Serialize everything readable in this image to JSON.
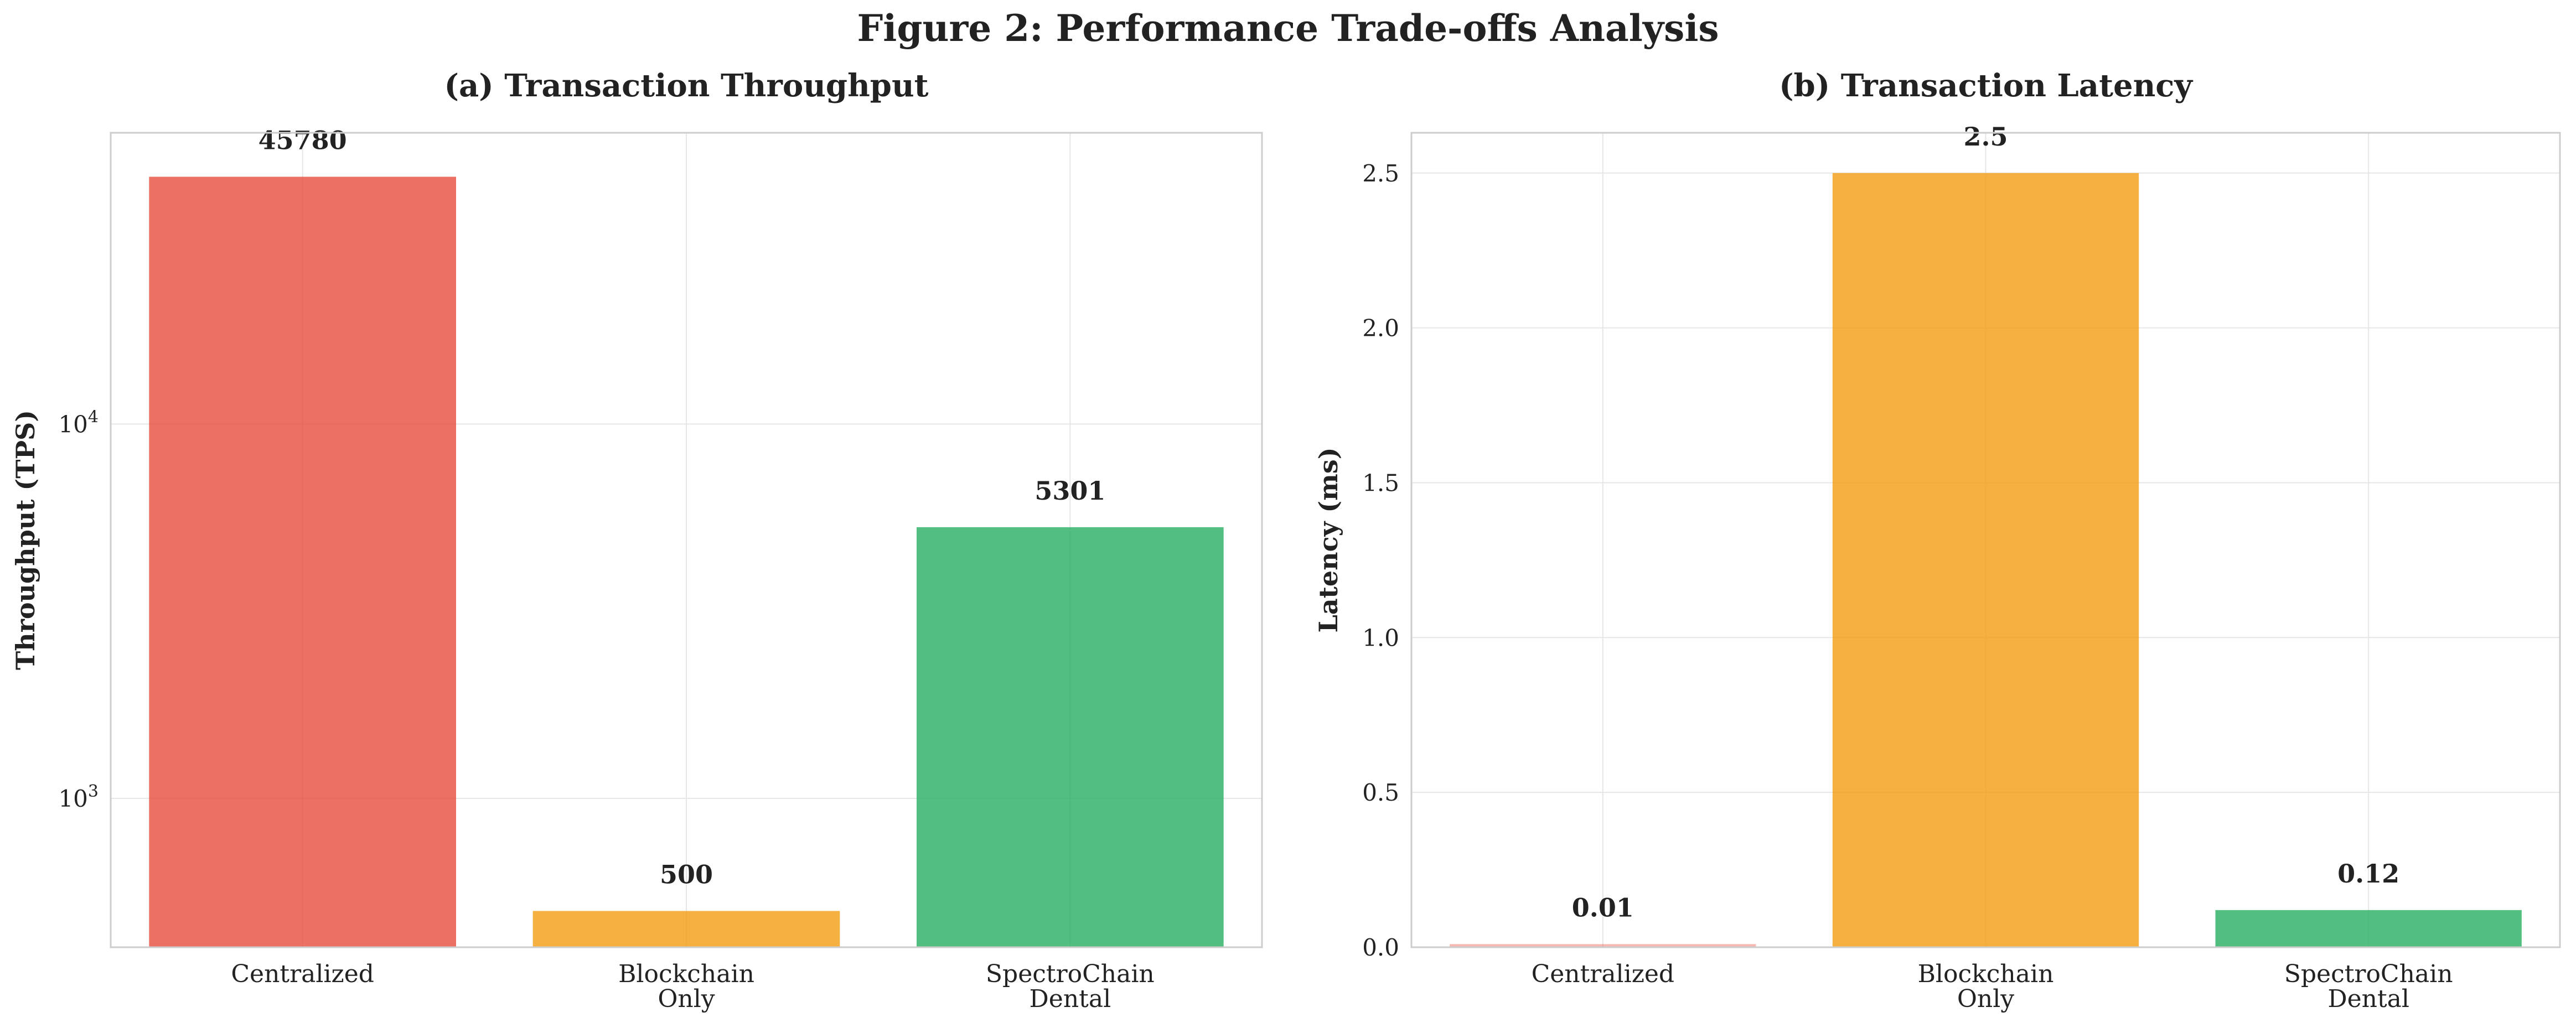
{
  "figure": {
    "title": "Figure 2: Performance Trade-offs Analysis"
  },
  "colors": {
    "centralized": "#e74c3c",
    "blockchain_only": "#f39c12",
    "spectrochain_dental": "#27ae60",
    "grid": "#e6e6e6",
    "axis": "#cccccc",
    "text": "#222222"
  },
  "chart_data": [
    {
      "type": "bar",
      "title": "(a) Transaction Throughput",
      "xlabel": "",
      "ylabel": "Throughput (TPS)",
      "yscale": "log",
      "ylim": [
        400,
        60000
      ],
      "yticks": [
        1000,
        10000
      ],
      "ytick_labels": [
        "10^3",
        "10^4"
      ],
      "categories": [
        [
          "Centralized"
        ],
        [
          "Blockchain",
          "Only"
        ],
        [
          "SpectroChain",
          "Dental"
        ]
      ],
      "values": [
        45780,
        500,
        5301
      ],
      "value_labels": [
        "45780",
        "500",
        "5301"
      ],
      "bar_colors": [
        "#e74c3c",
        "#f39c12",
        "#27ae60"
      ],
      "bar_alpha": [
        0.8,
        0.8,
        0.8
      ],
      "grid": true
    },
    {
      "type": "bar",
      "title": "(b) Transaction Latency",
      "xlabel": "",
      "ylabel": "Latency (ms)",
      "yscale": "linear",
      "ylim": [
        0,
        2.63
      ],
      "yticks": [
        0.0,
        0.5,
        1.0,
        1.5,
        2.0,
        2.5
      ],
      "ytick_labels": [
        "0.0",
        "0.5",
        "1.0",
        "1.5",
        "2.0",
        "2.5"
      ],
      "categories": [
        [
          "Centralized"
        ],
        [
          "Blockchain",
          "Only"
        ],
        [
          "SpectroChain",
          "Dental"
        ]
      ],
      "values": [
        0.01,
        2.5,
        0.12
      ],
      "value_labels": [
        "0.01",
        "2.5",
        "0.12"
      ],
      "bar_colors": [
        "#e74c3c",
        "#f39c12",
        "#27ae60"
      ],
      "bar_alpha": [
        0.4,
        0.8,
        0.8
      ],
      "grid": true
    }
  ]
}
